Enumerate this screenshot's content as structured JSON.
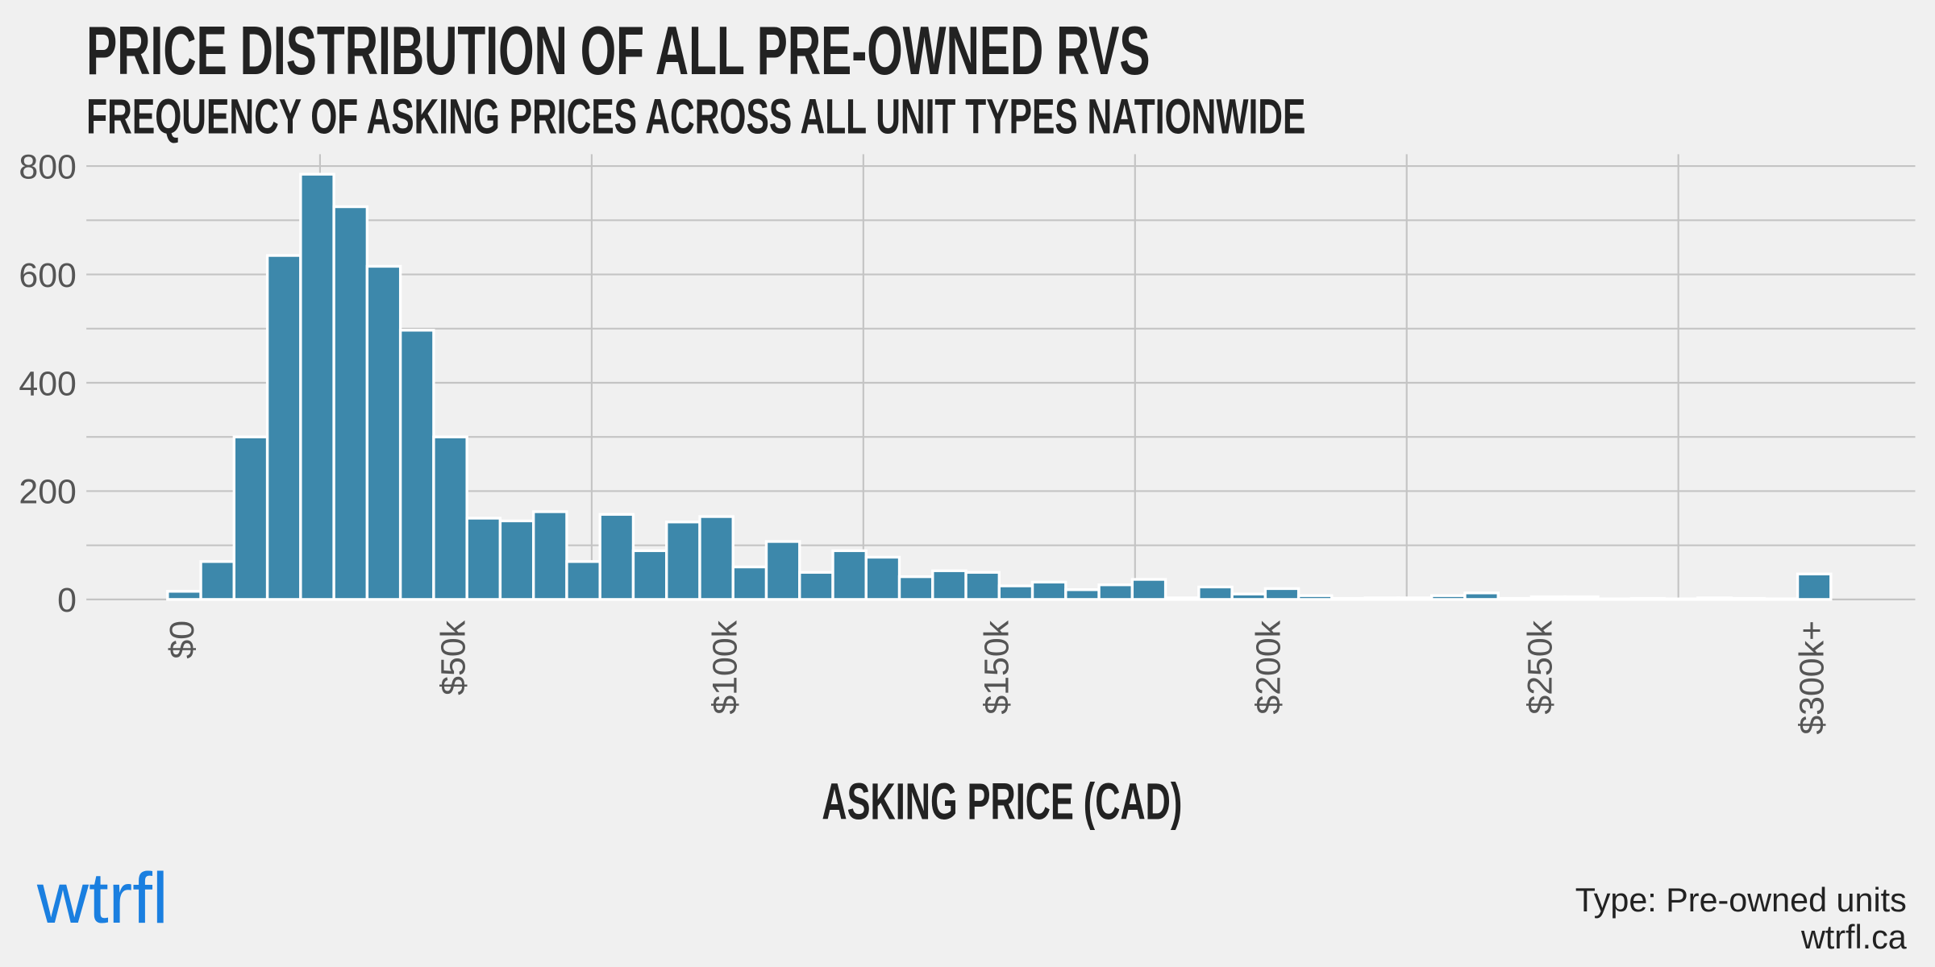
{
  "chart_data": {
    "type": "histogram",
    "title": "PRICE DISTRIBUTION OF ALL PRE-OWNED RVS",
    "subtitle": "FREQUENCY OF ASKING PRICES ACROSS ALL UNIT TYPES NATIONWIDE",
    "x_label": "ASKING PRICE (CAD)",
    "color": "#3d88ab",
    "bins": [
      -3061,
      3061,
      9184,
      15306,
      21429,
      27551,
      33673,
      39796,
      45918,
      52041,
      58163,
      64286,
      70408,
      76531,
      82653,
      88776,
      94898,
      101020,
      107143,
      113265,
      119388,
      125510,
      131633,
      137755,
      143878,
      150000,
      156122,
      162245,
      168367,
      174490,
      180612,
      186735,
      192857,
      198980,
      205102,
      211224,
      217347,
      223469,
      229592,
      235714,
      241837,
      247959,
      254082,
      260204,
      266327,
      272449,
      278571,
      284694,
      290816,
      296939,
      303061
    ],
    "counts": [
      15,
      70,
      300,
      635,
      785,
      725,
      615,
      497,
      300,
      150,
      145,
      162,
      70,
      157,
      90,
      143,
      153,
      60,
      107,
      50,
      90,
      78,
      42,
      53,
      50,
      25,
      32,
      18,
      27,
      37,
      3,
      23,
      10,
      20,
      7,
      2,
      3,
      3,
      7,
      12,
      2,
      5,
      5,
      1,
      2,
      1,
      3,
      2,
      1,
      47
    ],
    "xlim": [
      -18000,
      318600
    ],
    "ylim": [
      0,
      822
    ],
    "xticks": [
      {
        "value": 0,
        "label": "$0"
      },
      {
        "value": 50000,
        "label": "$50k"
      },
      {
        "value": 100000,
        "label": "$100k"
      },
      {
        "value": 150000,
        "label": "$150k"
      },
      {
        "value": 200000,
        "label": "$200k"
      },
      {
        "value": 250000,
        "label": "$250k"
      },
      {
        "value": 300000,
        "label": "$300k+"
      }
    ],
    "yticks": [
      0,
      200,
      400,
      600,
      800
    ],
    "x_grid_lines": [
      25000,
      75000,
      125000,
      175000,
      225000,
      275000
    ],
    "y_grid_lines": [
      100,
      300,
      500,
      700
    ],
    "grid": true
  },
  "footer": {
    "logo": "wtrfl",
    "note": "Type: Pre-owned units",
    "site": "wtrfl.ca"
  }
}
